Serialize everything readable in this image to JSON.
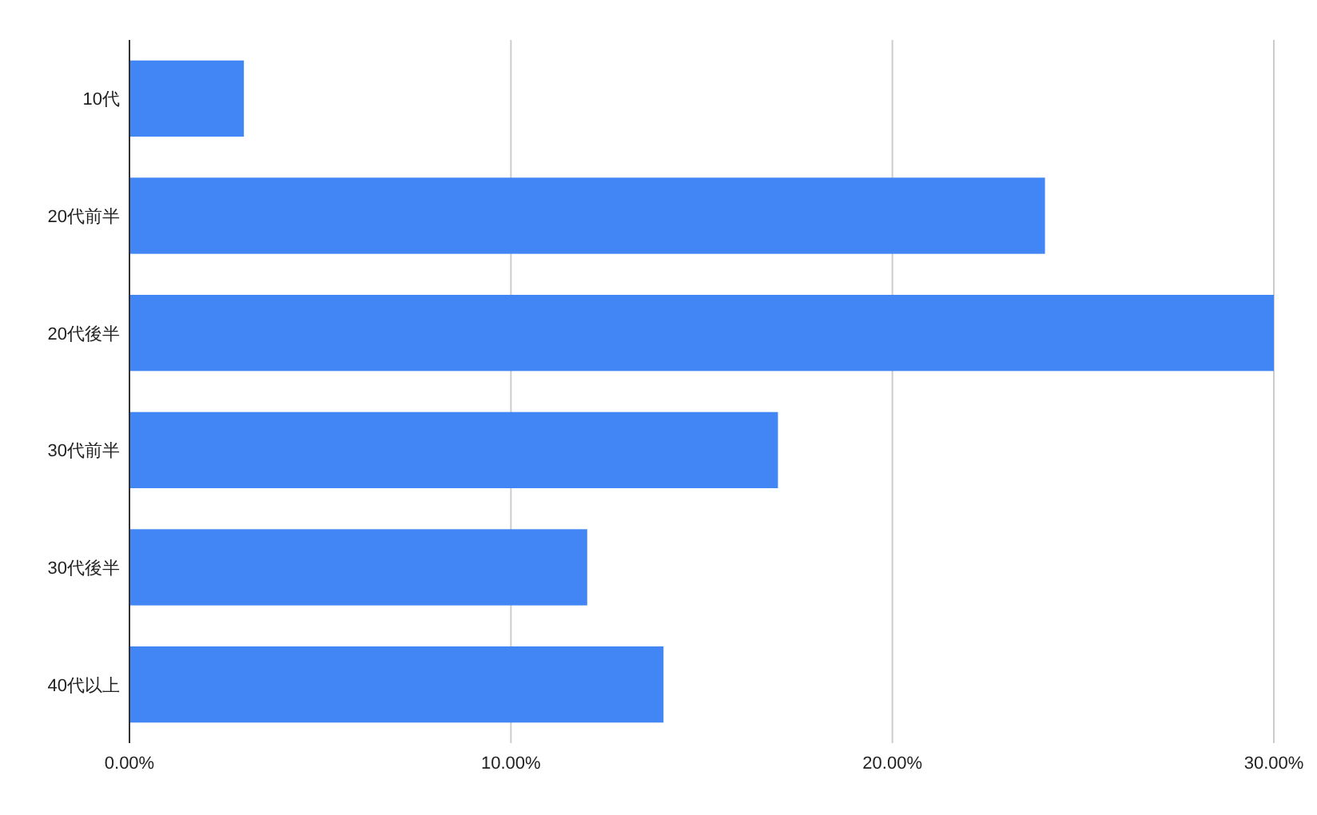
{
  "chart_data": {
    "type": "bar",
    "orientation": "horizontal",
    "categories": [
      "10代",
      "20代前半",
      "20代後半",
      "30代前半",
      "30代後半",
      "40代以上"
    ],
    "values": [
      3,
      24,
      30,
      17,
      12,
      14
    ],
    "color": "#4285f4",
    "xlim": [
      0,
      30
    ],
    "xticks": [
      {
        "value": 0,
        "label": "0.00%"
      },
      {
        "value": 10,
        "label": "10.00%"
      },
      {
        "value": 20,
        "label": "20.00%"
      },
      {
        "value": 30,
        "label": "30.00%"
      }
    ],
    "grid": "x"
  }
}
